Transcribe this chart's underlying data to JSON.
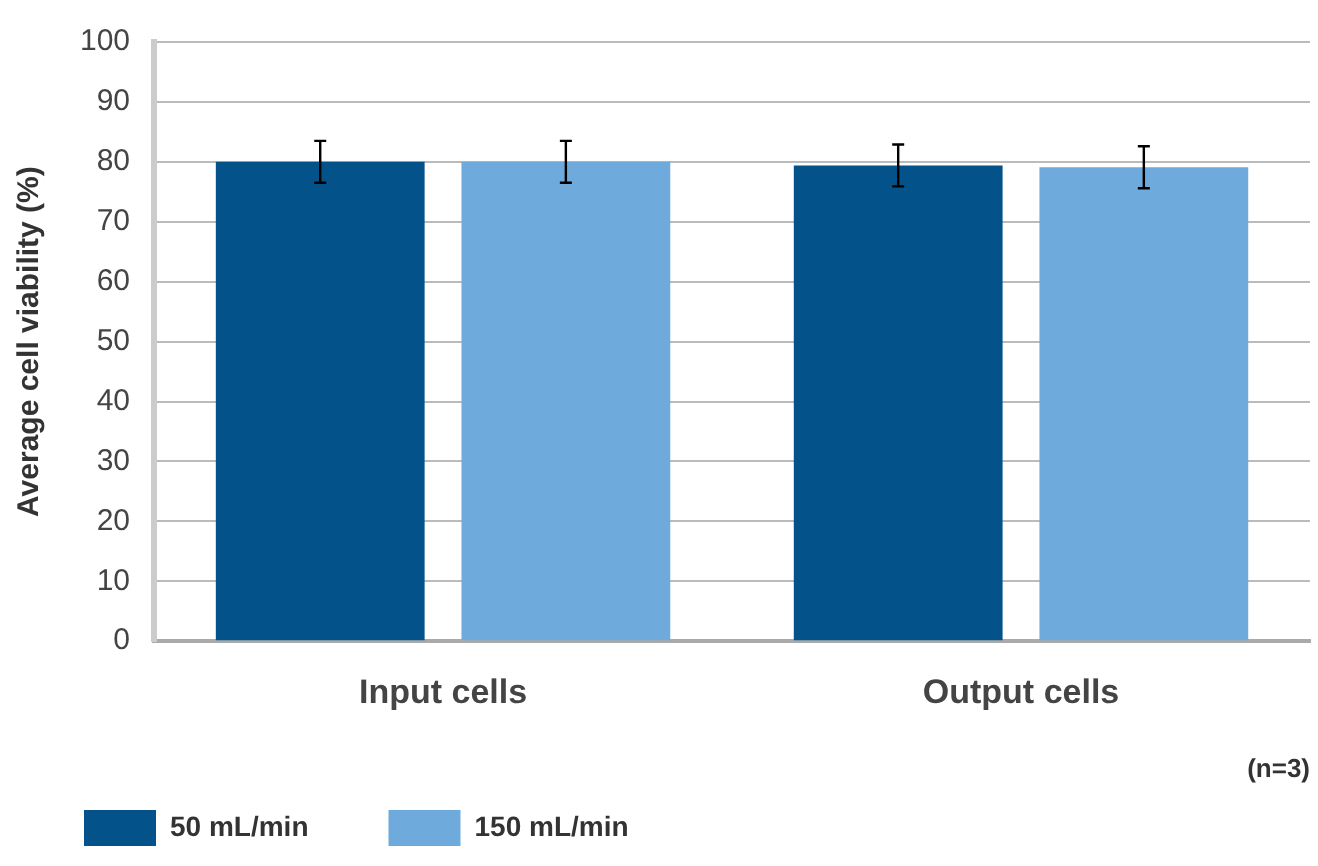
{
  "chart_data": {
    "type": "bar",
    "ylabel": "Average cell viability (%)",
    "categories": [
      "Input cells",
      "Output cells"
    ],
    "series": [
      {
        "name": "50 mL/min",
        "color": "#03538a",
        "values": [
          80,
          79.4
        ],
        "errors": [
          3.5,
          3.5
        ]
      },
      {
        "name": "150 mL/min",
        "color": "#6eaadb",
        "values": [
          80,
          79.1
        ],
        "errors": [
          3.5,
          3.5
        ]
      }
    ],
    "ylim": [
      0,
      100
    ],
    "yticks": [
      0,
      10,
      20,
      30,
      40,
      50,
      60,
      70,
      80,
      90,
      100
    ],
    "grid": "y",
    "legend": "bottom left",
    "annotations": [
      "(n=3)"
    ]
  }
}
